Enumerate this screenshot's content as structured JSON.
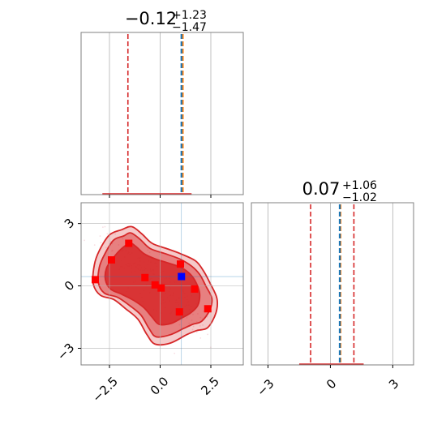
{
  "chart_data": {
    "type": "corner",
    "colors": {
      "contour_fill": "#d62728",
      "contour_edge": "#d62728",
      "quantile_line": "#d62728",
      "truth_line": "#1f77b4",
      "truth_line_alt": "#ff7f0e",
      "marker_red": "#ff0000",
      "marker_blue": "#0000ff",
      "grid": "#b0b0b0",
      "spine": "#808080"
    },
    "params": [
      {
        "title_main": "−0.12",
        "title_sup": "+1.23",
        "title_sub": "−1.47",
        "median": -0.12,
        "quantile_low": -1.59,
        "quantile_high": 1.11,
        "truth": 1.05,
        "truth_alt": 1.12,
        "range": [
          -3.9,
          4.1
        ],
        "ticks": [
          -2.5,
          0.0,
          2.5
        ],
        "tick_labels": [
          "−2.5",
          "0.0",
          "2.5"
        ],
        "hist_extent": [
          -2.85,
          1.55
        ]
      },
      {
        "title_main": "0.07",
        "title_sup": "+1.06",
        "title_sub": "−1.02",
        "median": 0.07,
        "quantile_low": -0.95,
        "quantile_high": 1.13,
        "truth": 0.45,
        "truth_alt": 0.49,
        "range": [
          -3.8,
          4.0
        ],
        "ticks": [
          -3,
          0,
          3
        ],
        "tick_labels": [
          "−3",
          "0",
          "3"
        ],
        "hist_extent": [
          -1.5,
          1.6
        ]
      }
    ],
    "joint": {
      "red_markers": [
        {
          "x": -3.2,
          "y": 0.3
        },
        {
          "x": -2.4,
          "y": 1.25
        },
        {
          "x": -1.55,
          "y": 2.05
        },
        {
          "x": -0.75,
          "y": 0.4
        },
        {
          "x": -0.25,
          "y": 0.05
        },
        {
          "x": 0.05,
          "y": -0.1
        },
        {
          "x": 1.0,
          "y": 1.05
        },
        {
          "x": 1.7,
          "y": -0.15
        },
        {
          "x": 0.95,
          "y": -1.25
        },
        {
          "x": 2.35,
          "y": -1.1
        }
      ],
      "blue_marker": {
        "x": 1.05,
        "y": 0.45
      },
      "contour_levels": [
        [
          [
            -3.3,
            0.1
          ],
          [
            -3.25,
            1.0
          ],
          [
            -3.0,
            1.7
          ],
          [
            -2.5,
            2.45
          ],
          [
            -1.9,
            2.7
          ],
          [
            -1.4,
            2.85
          ],
          [
            -0.9,
            2.5
          ],
          [
            -0.4,
            2.05
          ],
          [
            0.3,
            1.8
          ],
          [
            1.0,
            1.55
          ],
          [
            1.75,
            1.2
          ],
          [
            2.15,
            0.7
          ],
          [
            2.45,
            0.15
          ],
          [
            2.8,
            -0.6
          ],
          [
            2.75,
            -1.3
          ],
          [
            2.35,
            -2.0
          ],
          [
            1.8,
            -2.15
          ],
          [
            1.3,
            -2.35
          ],
          [
            0.5,
            -2.75
          ],
          [
            -0.25,
            -2.8
          ],
          [
            -0.65,
            -2.35
          ],
          [
            -1.1,
            -1.6
          ],
          [
            -1.7,
            -1.1
          ],
          [
            -2.3,
            -0.65
          ],
          [
            -2.95,
            -0.45
          ]
        ],
        [
          [
            -3.05,
            0.15
          ],
          [
            -3.0,
            0.9
          ],
          [
            -2.75,
            1.5
          ],
          [
            -2.3,
            2.2
          ],
          [
            -1.8,
            2.4
          ],
          [
            -1.45,
            2.55
          ],
          [
            -1.0,
            2.25
          ],
          [
            -0.5,
            1.8
          ],
          [
            0.25,
            1.55
          ],
          [
            0.95,
            1.3
          ],
          [
            1.55,
            0.95
          ],
          [
            1.95,
            0.55
          ],
          [
            2.25,
            0.0
          ],
          [
            2.55,
            -0.6
          ],
          [
            2.45,
            -1.15
          ],
          [
            2.05,
            -1.7
          ],
          [
            1.6,
            -1.85
          ],
          [
            1.15,
            -2.05
          ],
          [
            0.5,
            -2.35
          ],
          [
            -0.2,
            -2.45
          ],
          [
            -0.55,
            -2.05
          ],
          [
            -0.95,
            -1.4
          ],
          [
            -1.5,
            -0.95
          ],
          [
            -2.1,
            -0.55
          ],
          [
            -2.75,
            -0.35
          ]
        ],
        [
          [
            -2.7,
            0.3
          ],
          [
            -2.65,
            0.85
          ],
          [
            -2.35,
            1.3
          ],
          [
            -1.95,
            1.75
          ],
          [
            -1.5,
            2.05
          ],
          [
            -1.2,
            1.9
          ],
          [
            -0.8,
            1.55
          ],
          [
            -0.25,
            1.3
          ],
          [
            0.4,
            1.1
          ],
          [
            1.0,
            0.9
          ],
          [
            1.5,
            0.55
          ],
          [
            1.8,
            0.1
          ],
          [
            1.95,
            -0.4
          ],
          [
            1.85,
            -0.95
          ],
          [
            1.5,
            -1.3
          ],
          [
            1.05,
            -1.55
          ],
          [
            0.55,
            -1.8
          ],
          [
            -0.05,
            -1.85
          ],
          [
            -0.4,
            -1.5
          ],
          [
            -0.8,
            -1.05
          ],
          [
            -1.3,
            -0.7
          ],
          [
            -1.9,
            -0.4
          ],
          [
            -2.45,
            -0.15
          ]
        ]
      ]
    }
  }
}
